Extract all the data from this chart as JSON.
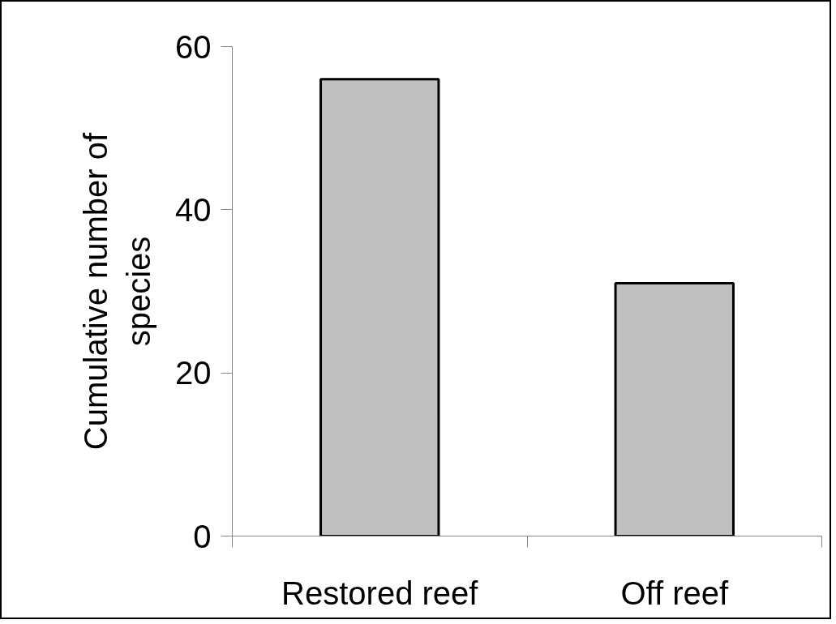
{
  "chart_data": {
    "type": "bar",
    "ylabel": "Cumulative number of species",
    "categories": [
      "Restored reef",
      "Off reef"
    ],
    "values": [
      56,
      31
    ],
    "color": "#c0c0c0",
    "ylim": [
      0,
      60
    ],
    "yticks": [
      0,
      20,
      40,
      60
    ],
    "grid": false
  }
}
